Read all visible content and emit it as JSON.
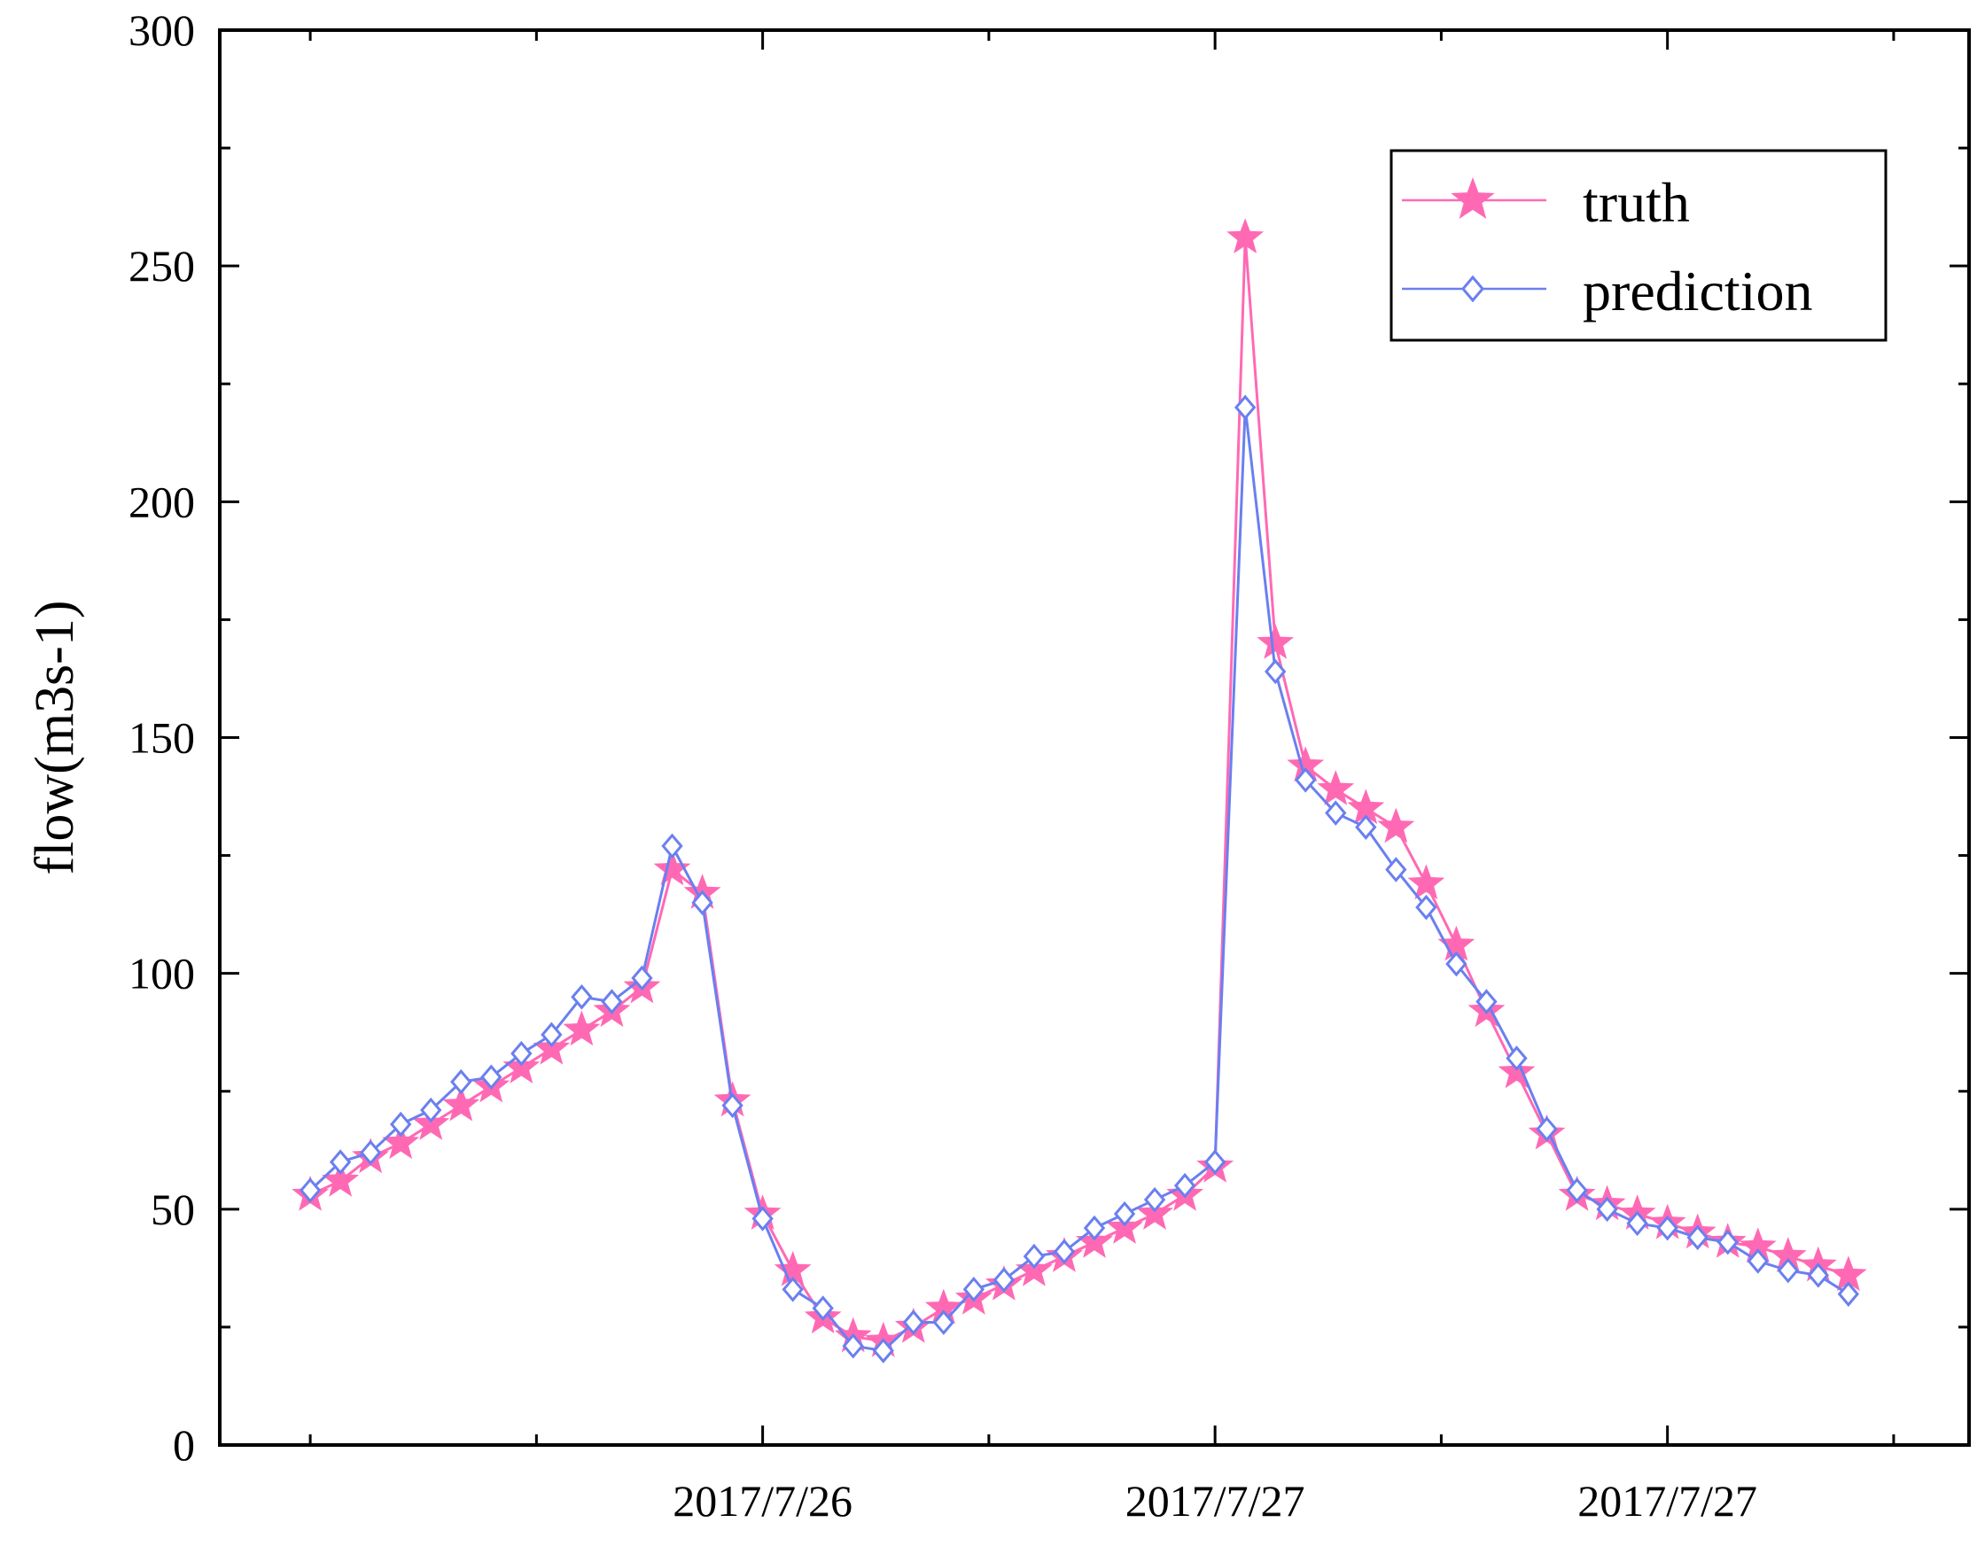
{
  "chart_data": {
    "type": "line",
    "title": "",
    "xlabel": "",
    "ylabel": "flow(m3s-1)",
    "ylim": [
      0,
      300
    ],
    "yticks": [
      0,
      50,
      100,
      150,
      200,
      250,
      300
    ],
    "xlim": [
      -3,
      55
    ],
    "x_tick_labels": [
      {
        "x": 15,
        "label": "2017/7/26"
      },
      {
        "x": 30,
        "label": "2017/7/27"
      },
      {
        "x": 45,
        "label": "2017/7/27"
      }
    ],
    "x_minor_ticks": [
      0,
      7.5,
      22.5,
      37.5,
      52.5
    ],
    "grid": false,
    "legend_position": "top-right",
    "series": [
      {
        "name": "truth",
        "color": "#ff69b4",
        "marker": "star",
        "values": [
          53,
          56,
          61,
          64,
          68,
          72,
          76,
          80,
          84,
          88,
          92,
          97,
          122,
          117,
          73,
          49,
          37,
          27,
          23,
          22,
          25,
          29,
          31,
          34,
          37,
          40,
          43,
          46,
          49,
          53,
          59,
          256,
          170,
          144,
          139,
          135,
          131,
          119,
          106,
          92,
          79,
          66,
          53,
          51,
          49,
          47,
          45,
          43,
          42,
          40,
          38,
          36
        ]
      },
      {
        "name": "prediction",
        "color": "#6a7ff0",
        "marker": "diamond",
        "values": [
          54,
          60,
          62,
          68,
          71,
          77,
          78,
          83,
          87,
          95,
          94,
          99,
          127,
          115,
          72,
          48,
          33,
          29,
          21,
          20,
          26,
          26,
          33,
          35,
          40,
          41,
          46,
          49,
          52,
          55,
          60,
          220,
          164,
          141,
          134,
          131,
          122,
          114,
          102,
          94,
          82,
          67,
          54,
          50,
          47,
          46,
          44,
          43,
          39,
          37,
          36,
          32
        ]
      }
    ]
  }
}
